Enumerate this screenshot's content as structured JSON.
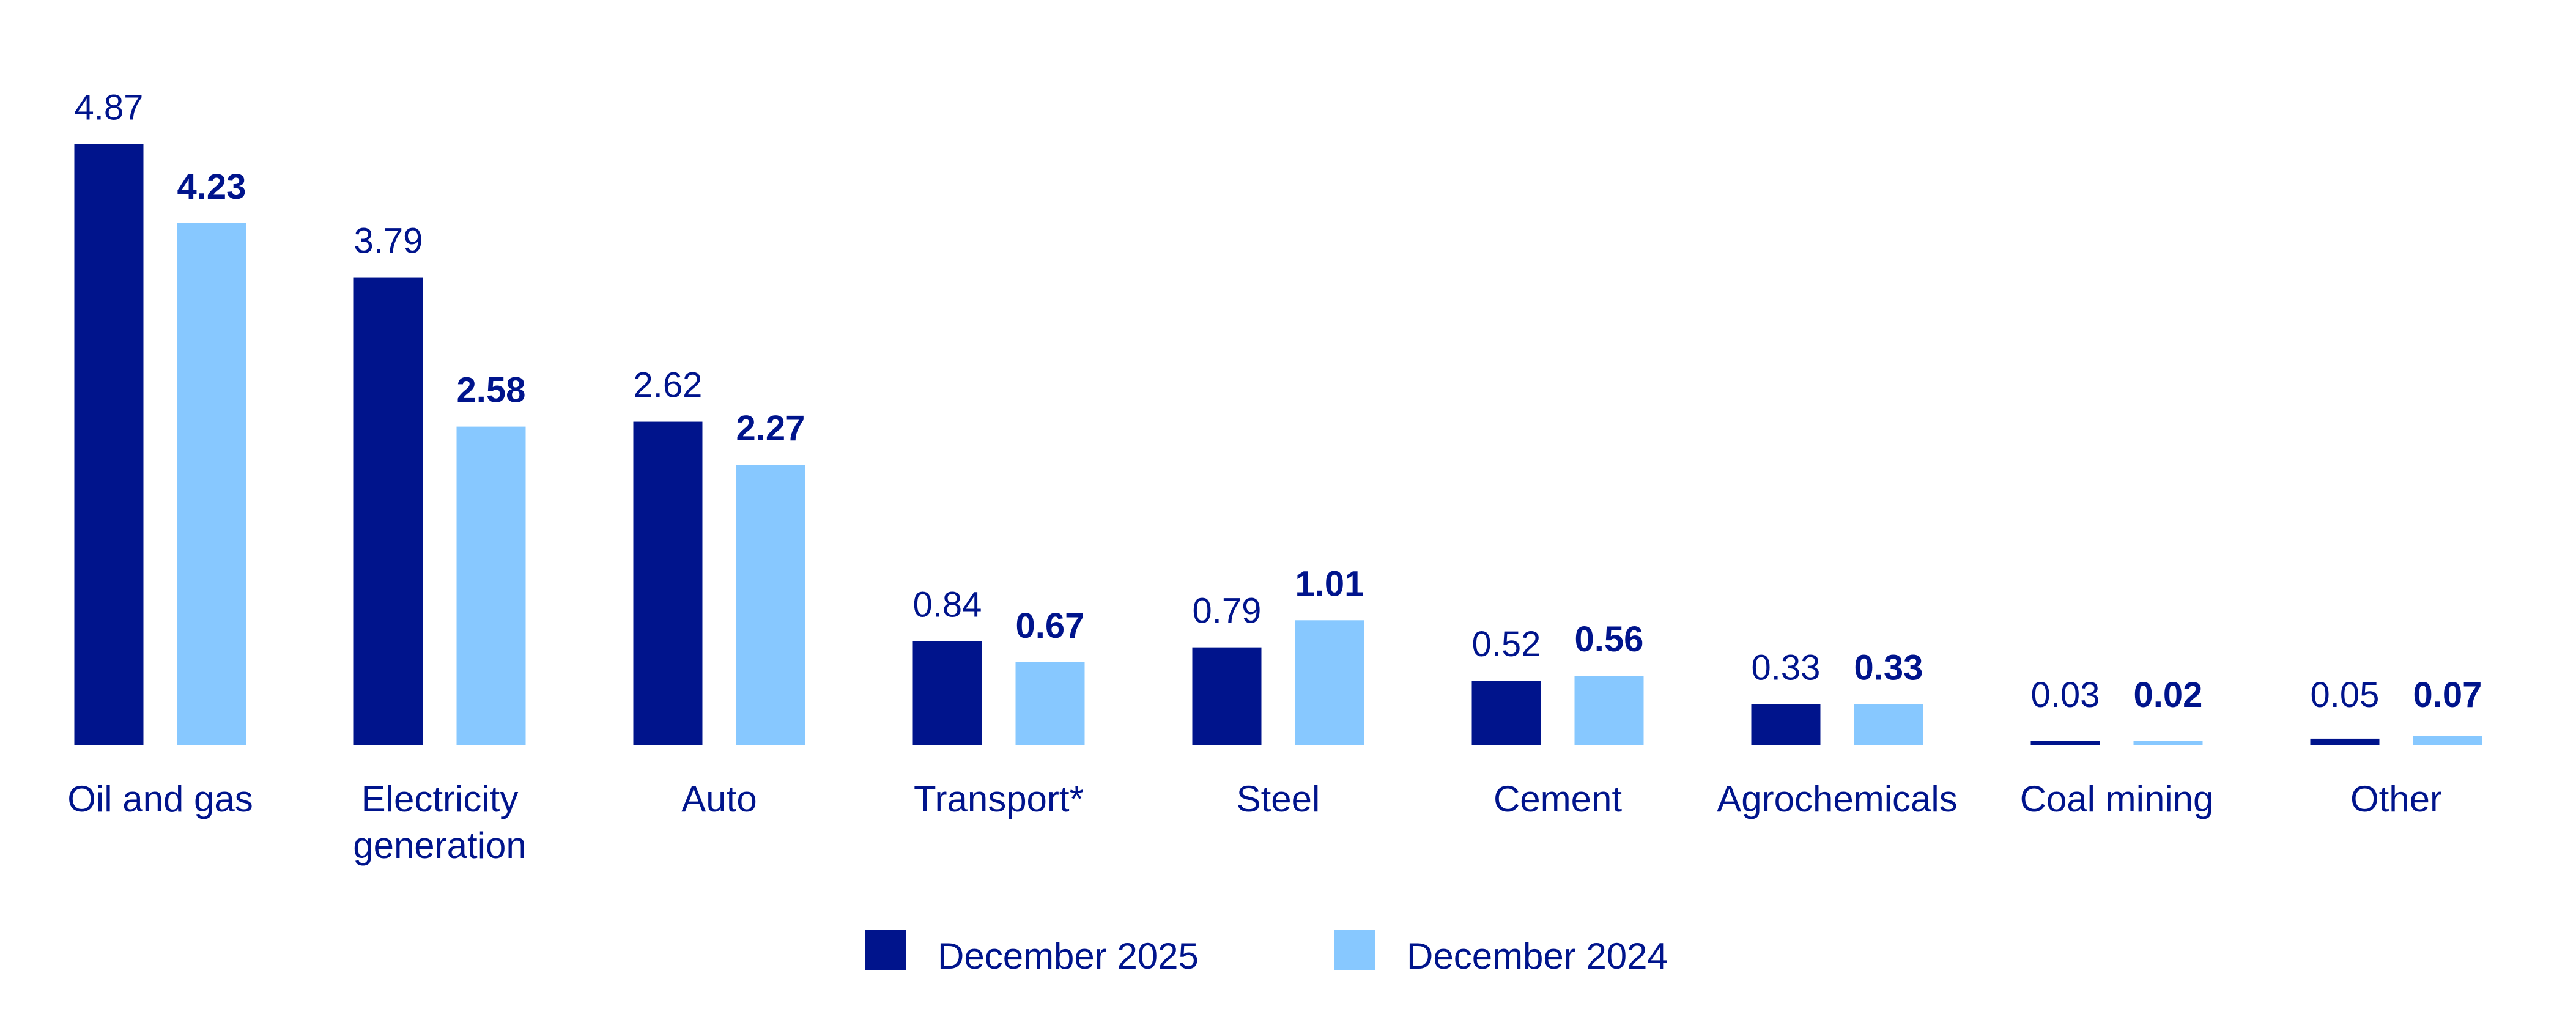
{
  "chart_data": {
    "type": "bar",
    "title": "",
    "xlabel": "",
    "ylabel": "",
    "grid": false,
    "legend_placement": "bottom",
    "categories": [
      [
        "Oil and gas"
      ],
      [
        "Electricity",
        "generation"
      ],
      [
        "Auto"
      ],
      [
        "Transport*"
      ],
      [
        "Steel"
      ],
      [
        "Cement"
      ],
      [
        "Agrochemicals"
      ],
      [
        "Coal mining"
      ],
      [
        "Other"
      ]
    ],
    "series": [
      {
        "name": "December 2025",
        "color": "#00148C",
        "label_weight": "normal",
        "values": [
          4.87,
          3.79,
          2.62,
          0.84,
          0.79,
          0.52,
          0.33,
          0.03,
          0.05
        ]
      },
      {
        "name": "December 2024",
        "color": "#87C8FF",
        "label_weight": "bold",
        "values": [
          4.23,
          2.58,
          2.27,
          0.67,
          1.01,
          0.56,
          0.33,
          0.02,
          0.07
        ]
      }
    ],
    "value_labels": [
      [
        "4.87",
        "3.79",
        "2.62",
        "0.84",
        "0.79",
        "0.52",
        "0.33",
        "0.03",
        "0.05"
      ],
      [
        "4.23",
        "2.58",
        "2.27",
        "0.67",
        "1.01",
        "0.56",
        "0.33",
        "0.02",
        "0.07"
      ]
    ],
    "text_color": "#00148C"
  }
}
